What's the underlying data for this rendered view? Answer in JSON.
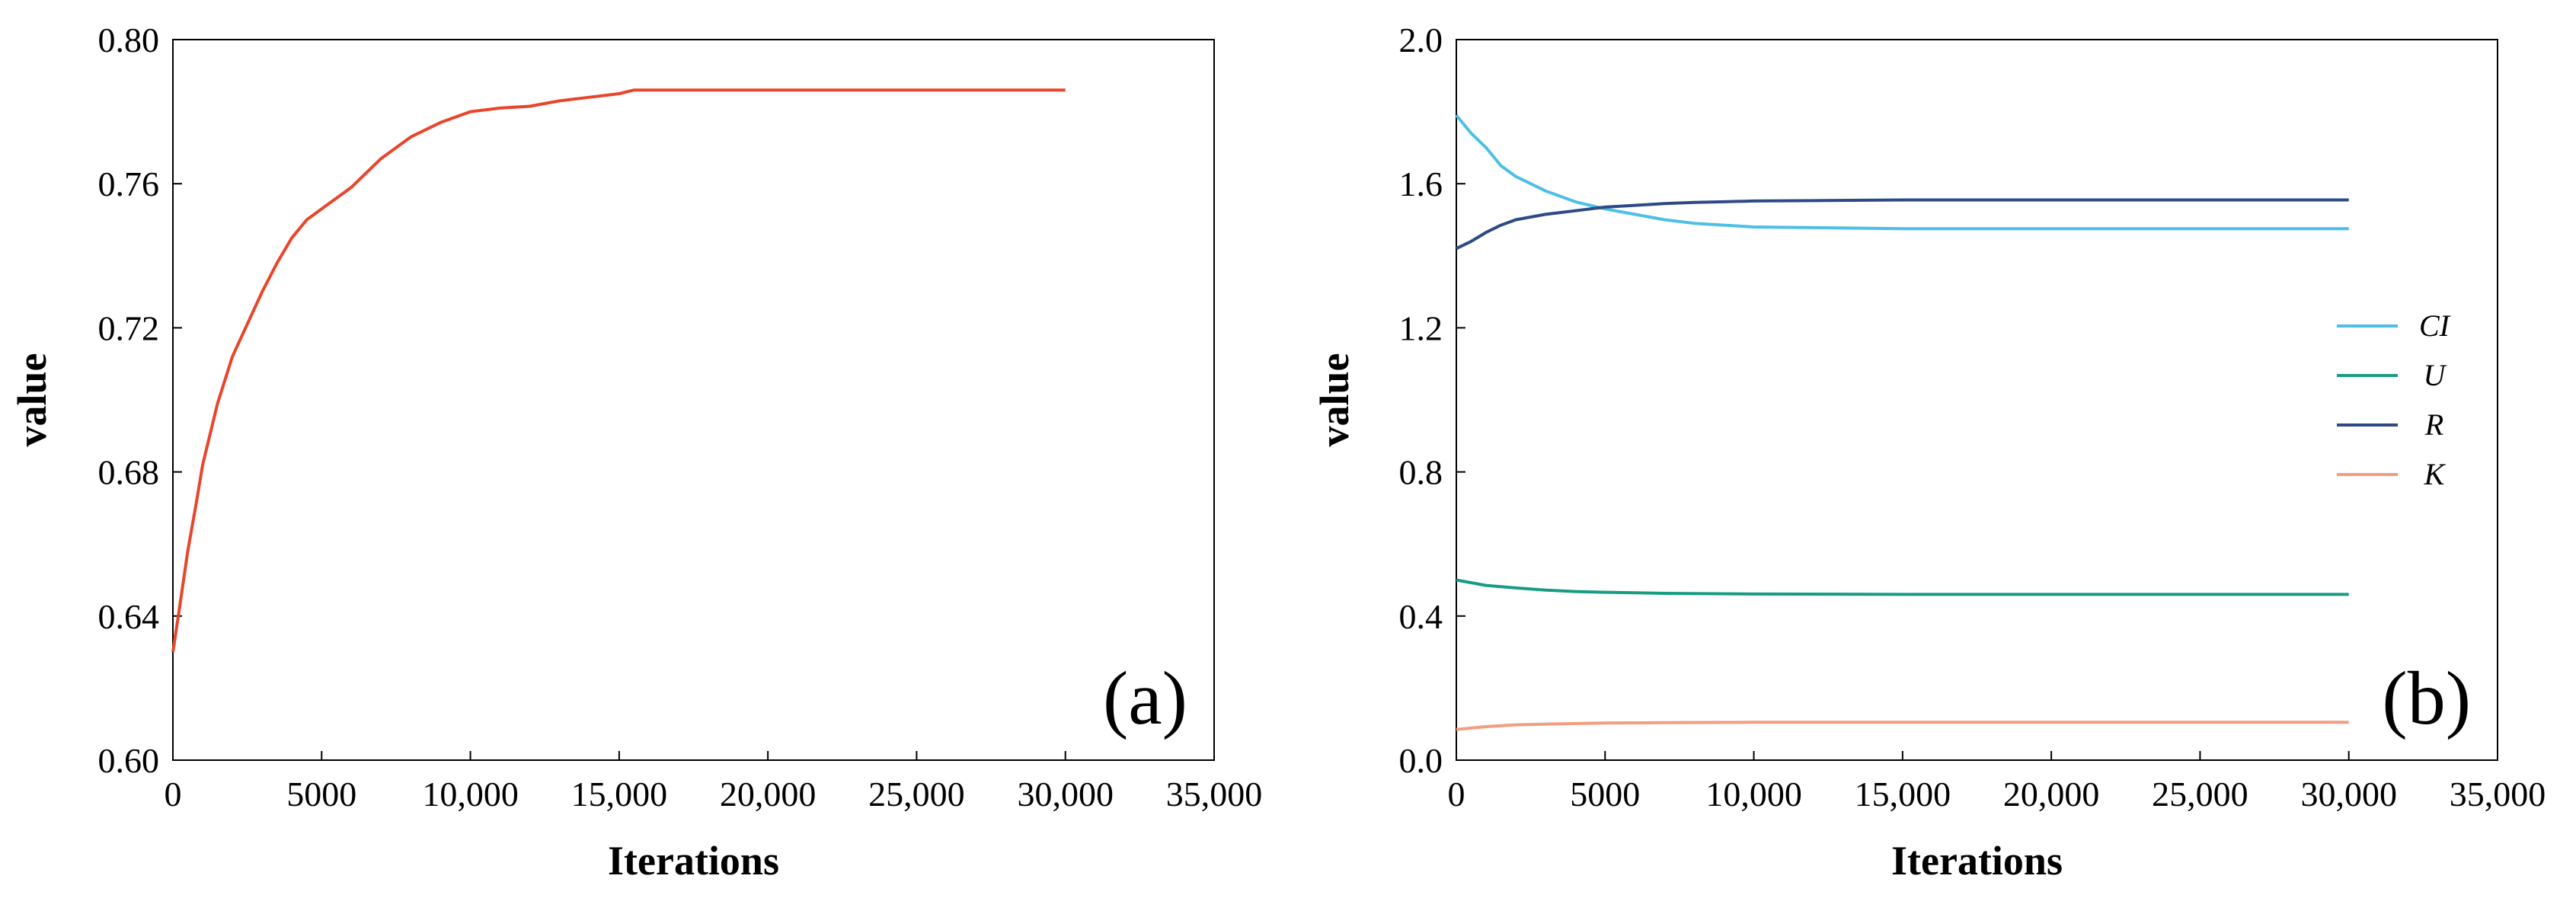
{
  "chart_data": [
    {
      "type": "line",
      "panel_label": "(a)",
      "xlabel": "Iterations",
      "ylabel": "value",
      "xlim": [
        0,
        35000
      ],
      "ylim": [
        0.6,
        0.8
      ],
      "x_ticks": [
        "0",
        "5000",
        "10,000",
        "15,000",
        "20,000",
        "25,000",
        "30,000",
        "35,000"
      ],
      "y_ticks": [
        "0.60",
        "0.64",
        "0.68",
        "0.72",
        "0.76",
        "0.80"
      ],
      "grid": false,
      "legend": "none",
      "series": [
        {
          "name": "value",
          "color": "#e8452b",
          "x": [
            0,
            200,
            500,
            800,
            1000,
            1500,
            2000,
            2500,
            3000,
            3500,
            4000,
            4500,
            5000,
            6000,
            7000,
            8000,
            9000,
            10000,
            11000,
            12000,
            13000,
            14000,
            15000,
            15500,
            20000,
            25000,
            30000
          ],
          "y": [
            0.63,
            0.641,
            0.658,
            0.672,
            0.682,
            0.699,
            0.712,
            0.721,
            0.73,
            0.738,
            0.745,
            0.75,
            0.753,
            0.759,
            0.767,
            0.773,
            0.777,
            0.78,
            0.781,
            0.7815,
            0.783,
            0.784,
            0.785,
            0.786,
            0.786,
            0.786,
            0.786
          ]
        }
      ]
    },
    {
      "type": "line",
      "panel_label": "(b)",
      "xlabel": "Iterations",
      "ylabel": "value",
      "xlim": [
        0,
        35000
      ],
      "ylim": [
        0.0,
        2.0
      ],
      "x_ticks": [
        "0",
        "5000",
        "10,000",
        "15,000",
        "20,000",
        "25,000",
        "30,000",
        "35,000"
      ],
      "y_ticks": [
        "0.0",
        "0.4",
        "0.8",
        "1.2",
        "1.6",
        "2.0"
      ],
      "grid": false,
      "legend": "right",
      "series": [
        {
          "name": "CI",
          "color": "#4dbfe6",
          "x": [
            0,
            500,
            1000,
            1500,
            2000,
            3000,
            4000,
            5000,
            6000,
            7000,
            8000,
            9000,
            10000,
            12000,
            15000,
            20000,
            25000,
            30000
          ],
          "y": [
            1.79,
            1.74,
            1.7,
            1.65,
            1.62,
            1.58,
            1.55,
            1.53,
            1.515,
            1.5,
            1.49,
            1.485,
            1.48,
            1.478,
            1.475,
            1.475,
            1.475,
            1.475
          ]
        },
        {
          "name": "U",
          "color": "#179c84",
          "x": [
            0,
            1000,
            2000,
            3000,
            4000,
            5000,
            7000,
            10000,
            15000,
            20000,
            25000,
            30000
          ],
          "y": [
            0.5,
            0.485,
            0.478,
            0.472,
            0.468,
            0.466,
            0.463,
            0.461,
            0.46,
            0.46,
            0.46,
            0.46
          ]
        },
        {
          "name": "R",
          "color": "#2e4a86",
          "x": [
            0,
            500,
            1000,
            1500,
            2000,
            3000,
            4000,
            5000,
            6000,
            7000,
            8000,
            9000,
            10000,
            12000,
            15000,
            20000,
            25000,
            30000
          ],
          "y": [
            1.42,
            1.44,
            1.465,
            1.485,
            1.5,
            1.515,
            1.525,
            1.535,
            1.54,
            1.545,
            1.548,
            1.55,
            1.552,
            1.553,
            1.555,
            1.555,
            1.555,
            1.555
          ]
        },
        {
          "name": "K",
          "color": "#f29e80",
          "x": [
            0,
            1000,
            2000,
            3000,
            5000,
            7000,
            10000,
            15000,
            20000,
            25000,
            30000
          ],
          "y": [
            0.085,
            0.093,
            0.098,
            0.1,
            0.103,
            0.104,
            0.105,
            0.105,
            0.105,
            0.105,
            0.105
          ]
        }
      ]
    }
  ]
}
